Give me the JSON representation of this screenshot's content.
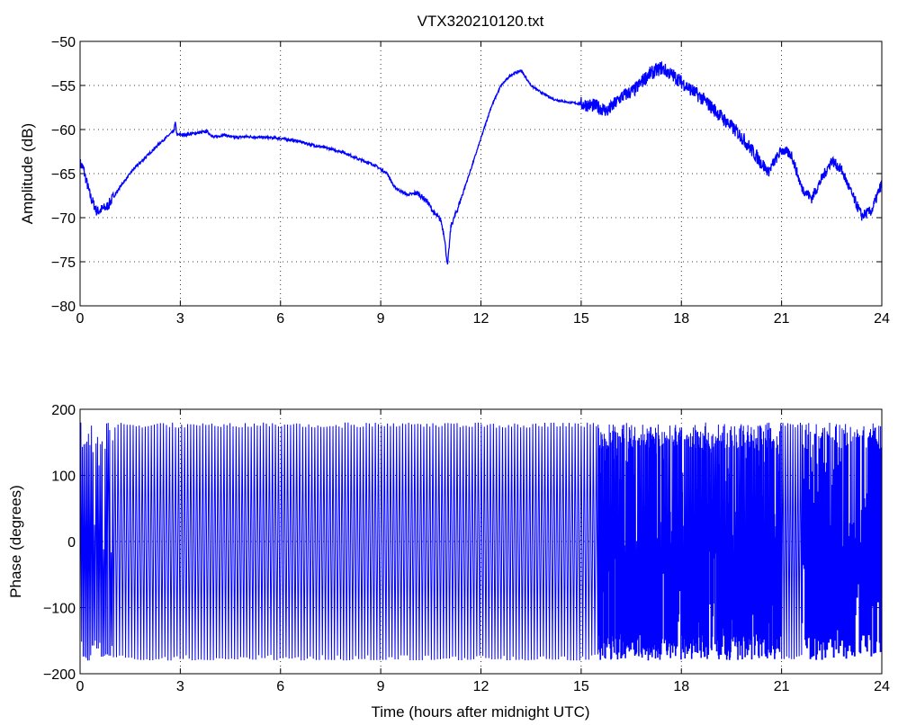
{
  "chart_data": [
    {
      "type": "line",
      "title": "VTX320210120.txt",
      "xlabel": "",
      "ylabel": "Amplitude (dB)",
      "xlim": [
        0,
        24
      ],
      "ylim": [
        -80,
        -50
      ],
      "xticks": [
        "0",
        "3",
        "6",
        "9",
        "12",
        "15",
        "18",
        "21",
        "24"
      ],
      "yticks": [
        "−50",
        "−55",
        "−60",
        "−65",
        "−70",
        "−75",
        "−80"
      ],
      "grid": true,
      "line_color": "#0000ff",
      "series": [
        {
          "x": [
            0,
            0.1,
            0.3,
            0.5,
            0.8,
            1.2,
            1.6,
            2.0,
            2.4,
            2.7,
            2.8,
            2.85,
            2.9,
            3.1,
            3.5,
            3.8,
            4.0,
            4.3,
            4.6,
            5.0,
            5.5,
            6.0,
            6.5,
            7.0,
            7.5,
            7.9,
            8.3,
            8.8,
            9.2,
            9.4,
            9.6,
            9.8,
            10.1,
            10.4,
            10.6,
            10.8,
            10.9,
            11.0,
            11.1,
            11.3,
            11.7,
            12.0,
            12.3,
            12.6,
            12.9,
            13.2,
            13.5,
            13.8,
            14.2,
            14.6,
            15.0,
            15.4,
            15.8,
            16.2,
            16.6,
            17.0,
            17.4,
            17.8,
            18.2,
            18.6,
            19.0,
            19.4,
            19.8,
            20.2,
            20.6,
            21.0,
            21.3,
            21.6,
            21.9,
            22.2,
            22.5,
            22.8,
            23.1,
            23.4,
            23.7,
            24.0
          ],
          "y": [
            -63.8,
            -64.5,
            -67.5,
            -69.3,
            -68.8,
            -66.5,
            -64.5,
            -63,
            -61.5,
            -60.5,
            -60.2,
            -59.2,
            -60.6,
            -60.6,
            -60.4,
            -60.2,
            -60.9,
            -60.6,
            -60.9,
            -60.8,
            -60.9,
            -61.0,
            -61.3,
            -61.8,
            -62.2,
            -62.6,
            -63.3,
            -64.0,
            -65.0,
            -66.5,
            -67.0,
            -67.4,
            -67.2,
            -68.2,
            -69.5,
            -70.3,
            -72.0,
            -75.5,
            -71.0,
            -69.0,
            -64.5,
            -61.0,
            -57.5,
            -55.0,
            -53.8,
            -53.3,
            -55.0,
            -55.8,
            -56.6,
            -56.9,
            -57.1,
            -57.3,
            -57.9,
            -56.3,
            -55.5,
            -53.8,
            -53.0,
            -54.0,
            -55.2,
            -56.4,
            -57.8,
            -59.3,
            -60.8,
            -62.8,
            -64.8,
            -62.3,
            -62.9,
            -66.6,
            -67.8,
            -65.6,
            -63.5,
            -64.6,
            -67.3,
            -69.8,
            -69.2,
            -66.1
          ]
        }
      ]
    },
    {
      "type": "line",
      "title": "",
      "xlabel": "Time (hours after midnight UTC)",
      "ylabel": "Phase (degrees)",
      "xlim": [
        0,
        24
      ],
      "ylim": [
        -200,
        200
      ],
      "xticks": [
        "0",
        "3",
        "6",
        "9",
        "12",
        "15",
        "18",
        "21",
        "24"
      ],
      "yticks": [
        "200",
        "100",
        "0",
        "−100",
        "−200"
      ],
      "grid": true,
      "line_color": "#0000ff",
      "series": [
        {
          "phase_wrap_range": [
            -180,
            180
          ],
          "segments": [
            {
              "x_range": [
                0,
                1
              ],
              "cycles_per_hour": 22,
              "density": "dense"
            },
            {
              "x_range": [
                1,
                15.5
              ],
              "cycles_per_hour": 11,
              "density": "regular"
            },
            {
              "x_range": [
                15.5,
                21
              ],
              "cycles_per_hour": 60,
              "density": "dense"
            },
            {
              "x_range": [
                21,
                21.6
              ],
              "cycles_per_hour": 14,
              "density": "regular"
            },
            {
              "x_range": [
                21.6,
                24
              ],
              "cycles_per_hour": 40,
              "density": "dense"
            }
          ]
        }
      ]
    }
  ]
}
